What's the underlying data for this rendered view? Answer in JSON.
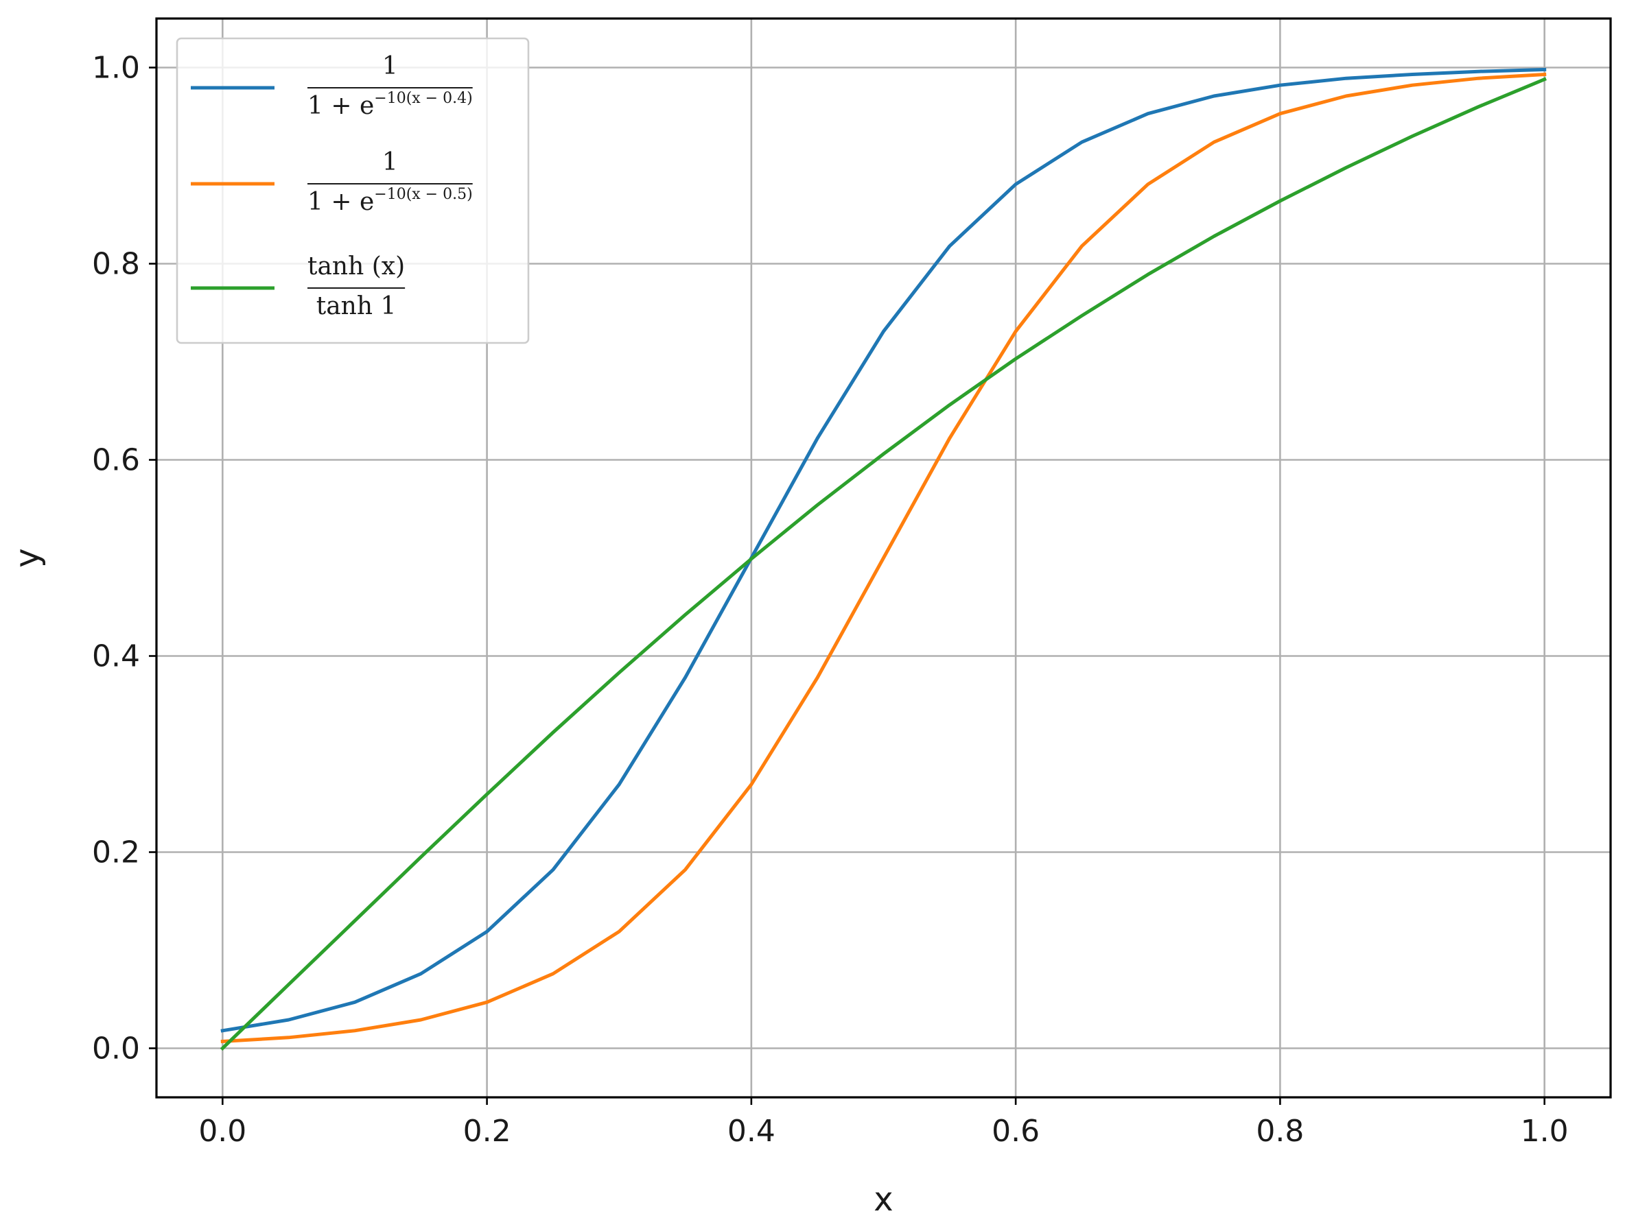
{
  "chart_data": {
    "type": "line",
    "xlabel": "x",
    "ylabel": "y",
    "xlim": [
      -0.05,
      1.05
    ],
    "ylim": [
      -0.05,
      1.05
    ],
    "xticks": [
      0.0,
      0.2,
      0.4,
      0.6,
      0.8,
      1.0
    ],
    "yticks": [
      0.0,
      0.2,
      0.4,
      0.6,
      0.8,
      1.0
    ],
    "xtick_labels": [
      "0.0",
      "0.2",
      "0.4",
      "0.6",
      "0.8",
      "1.0"
    ],
    "ytick_labels": [
      "0.0",
      "0.2",
      "0.4",
      "0.6",
      "0.8",
      "1.0"
    ],
    "grid": true,
    "legend_position": "upper-left",
    "x": [
      0.0,
      0.05,
      0.1,
      0.15,
      0.2,
      0.25,
      0.3,
      0.35,
      0.4,
      0.45,
      0.5,
      0.55,
      0.6,
      0.65,
      0.7,
      0.75,
      0.8,
      0.85,
      0.9,
      0.95,
      1.0
    ],
    "series": [
      {
        "color": "#1f77b4",
        "values": [
          0.018,
          0.029,
          0.047,
          0.076,
          0.119,
          0.182,
          0.269,
          0.378,
          0.5,
          0.622,
          0.731,
          0.818,
          0.881,
          0.924,
          0.953,
          0.971,
          0.982,
          0.989,
          0.993,
          0.996,
          0.998
        ],
        "legend": {
          "numerator": "1",
          "denominator_base": "1 + e",
          "denominator_exponent": "−10(x − 0.4)"
        }
      },
      {
        "color": "#ff7f0e",
        "values": [
          0.007,
          0.011,
          0.018,
          0.029,
          0.047,
          0.076,
          0.119,
          0.182,
          0.269,
          0.378,
          0.5,
          0.622,
          0.731,
          0.818,
          0.881,
          0.924,
          0.953,
          0.971,
          0.982,
          0.989,
          0.993
        ],
        "legend": {
          "numerator": "1",
          "denominator_base": "1 + e",
          "denominator_exponent": "−10(x − 0.5)"
        }
      },
      {
        "color": "#2ca02c",
        "values": [
          0.0,
          0.065,
          0.13,
          0.195,
          0.259,
          0.322,
          0.383,
          0.442,
          0.499,
          0.554,
          0.606,
          0.656,
          0.703,
          0.747,
          0.789,
          0.828,
          0.864,
          0.898,
          0.93,
          0.96,
          0.988
        ],
        "legend": {
          "numerator": "tanh (x)",
          "denominator_base": "tanh 1",
          "denominator_exponent": ""
        }
      }
    ]
  }
}
